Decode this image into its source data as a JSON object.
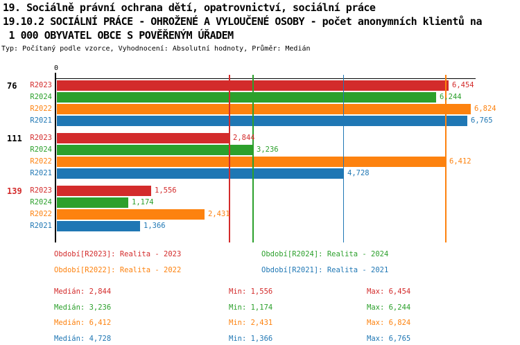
{
  "header": {
    "line1": "19. Sociálně právní ochrana dětí, opatrovnictví, sociální práce",
    "line2": "19.10.2 SOCIÁLNÍ PRÁCE - OHROŽENÉ A VYLOUČENÉ OSOBY - počet anonymních klientů na",
    "line3": " 1 000 OBYVATEL OBCE S POVĚŘENÝM ÚŘADEM",
    "meta": "Typ: Počítaný podle vzorce, Vyhodnocení: Absolutní hodnoty, Průměr: Medián"
  },
  "colors": {
    "R2023": "#d32b2b",
    "R2024": "#2ca02c",
    "R2022": "#fd820f",
    "R2021": "#1f77b4",
    "axis": "#000000"
  },
  "chart_data": {
    "type": "bar",
    "orientation": "horizontal",
    "title": "19.10.2 SOCIÁLNÍ PRÁCE - OHROŽENÉ A VYLOUČENÉ OSOBY - počet anonymních klientů na 1 000 OBYVATEL OBCE S POVĚŘENÝM ÚŘADEM",
    "xlim": [
      0,
      6900
    ],
    "origin_tick_label": "0",
    "grid": "median-lines-only",
    "series_order": [
      "R2023",
      "R2024",
      "R2022",
      "R2021"
    ],
    "groups": [
      {
        "label": "76",
        "label_color": "#000000",
        "bars": [
          {
            "series": "R2023",
            "value": 6454,
            "display": "6,454"
          },
          {
            "series": "R2024",
            "value": 6244,
            "display": "6,244"
          },
          {
            "series": "R2022",
            "value": 6824,
            "display": "6,824"
          },
          {
            "series": "R2021",
            "value": 6765,
            "display": "6,765"
          }
        ]
      },
      {
        "label": "111",
        "label_color": "#000000",
        "bars": [
          {
            "series": "R2023",
            "value": 2844,
            "display": "2,844"
          },
          {
            "series": "R2024",
            "value": 3236,
            "display": "3,236"
          },
          {
            "series": "R2022",
            "value": 6412,
            "display": "6,412"
          },
          {
            "series": "R2021",
            "value": 4728,
            "display": "4,728"
          }
        ]
      },
      {
        "label": "139",
        "label_color": "#d32b2b",
        "bars": [
          {
            "series": "R2023",
            "value": 1556,
            "display": "1,556"
          },
          {
            "series": "R2024",
            "value": 1174,
            "display": "1,174"
          },
          {
            "series": "R2022",
            "value": 2431,
            "display": "2,431"
          },
          {
            "series": "R2021",
            "value": 1366,
            "display": "1,366"
          }
        ]
      }
    ],
    "median_lines": [
      {
        "series": "R2023",
        "value": 2844
      },
      {
        "series": "R2024",
        "value": 3236
      },
      {
        "series": "R2022",
        "value": 6412
      },
      {
        "series": "R2021",
        "value": 4728
      }
    ]
  },
  "legend": {
    "items": [
      {
        "series": "R2023",
        "label": "Období[R2023]: Realita - 2023"
      },
      {
        "series": "R2024",
        "label": "Období[R2024]: Realita - 2024"
      },
      {
        "series": "R2022",
        "label": "Období[R2022]: Realita - 2022"
      },
      {
        "series": "R2021",
        "label": "Období[R2021]: Realita - 2021"
      }
    ]
  },
  "stats": {
    "labels": {
      "median": "Medián",
      "min": "Min",
      "max": "Max"
    },
    "rows": [
      {
        "series": "R2023",
        "median": "2,844",
        "min": "1,556",
        "max": "6,454"
      },
      {
        "series": "R2024",
        "median": "3,236",
        "min": "1,174",
        "max": "6,244"
      },
      {
        "series": "R2022",
        "median": "6,412",
        "min": "2,431",
        "max": "6,824"
      },
      {
        "series": "R2021",
        "median": "4,728",
        "min": "1,366",
        "max": "6,765"
      }
    ]
  }
}
